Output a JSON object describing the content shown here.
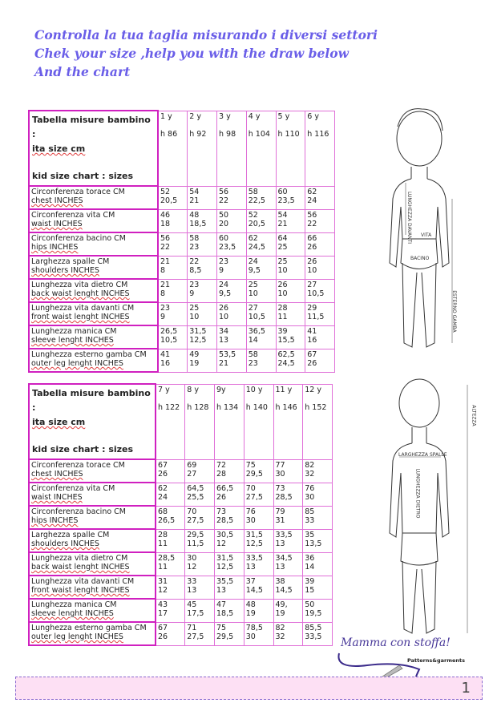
{
  "intro": [
    "Controlla la tua taglia misurando i diversi settori",
    "Chek your size ,help you with the draw below",
    "And the chart"
  ],
  "tables": [
    {
      "title_line1": "Tabella misure bambino :",
      "title_line2": "ita size  cm",
      "title_line3": "kid size chart : sizes",
      "sizes": [
        {
          "age": "1 y",
          "height": "h 86"
        },
        {
          "age": "2 y",
          "height": "h 92"
        },
        {
          "age": "3 y",
          "height": "h 98"
        },
        {
          "age": "4 y",
          "height": "h 104"
        },
        {
          "age": "5 y",
          "height": "h 110"
        },
        {
          "age": "6 y",
          "height": "h 116"
        }
      ],
      "rows": [
        {
          "it": "Circonferenza torace CM",
          "en": "chest INCHES",
          "cm": [
            "52",
            "54",
            "56",
            "58",
            "60",
            "62"
          ],
          "in": [
            "20,5",
            "21",
            "22",
            "22,5",
            "23,5",
            "24"
          ]
        },
        {
          "it": "Circonferenza vita CM",
          "en": "waist INCHES",
          "cm": [
            "46",
            "48",
            "50",
            "52",
            "54",
            "56"
          ],
          "in": [
            "18",
            "18,5",
            "20",
            "20,5",
            "21",
            "22"
          ]
        },
        {
          "it": "Circonferenza bacino CM",
          "en": "hips INCHES",
          "cm": [
            "56",
            "58",
            "60",
            "62",
            "64",
            "66"
          ],
          "in": [
            "22",
            "23",
            "23,5",
            "24,5",
            "25",
            "26"
          ]
        },
        {
          "it": "Larghezza spalle CM",
          "en": "shoulders INCHES",
          "cm": [
            "21",
            "22",
            "23",
            "24",
            "25",
            "26"
          ],
          "in": [
            "8",
            "8,5",
            "9",
            "9,5",
            "10",
            "10"
          ]
        },
        {
          "it": "Lunghezza vita dietro CM",
          "en": "back waist lenght INCHES",
          "cm": [
            "21",
            "23",
            "24",
            "25",
            "26",
            "27"
          ],
          "in": [
            "8",
            "9",
            "9,5",
            "10",
            "10",
            "10,5"
          ]
        },
        {
          "it": "Lunghezza vita davanti CM",
          "en": "front waist lenght INCHES",
          "cm": [
            "23",
            "25",
            "26",
            "27",
            "28",
            "29"
          ],
          "in": [
            "9",
            "10",
            "10",
            "10,5",
            "11",
            "11,5"
          ]
        },
        {
          "it": "Lunghezza manica CM",
          "en": "sleeve lenght INCHES",
          "cm": [
            "26,5",
            "31,5",
            "34",
            "36,5",
            "39",
            "41"
          ],
          "in": [
            "10,5",
            "12,5",
            "13",
            "14",
            "15,5",
            "16"
          ]
        },
        {
          "it": "Lunghezza esterno gamba CM",
          "en": "outer leg lenght INCHES",
          "cm": [
            "41",
            "49",
            "53,5",
            "58",
            "62,5",
            "67"
          ],
          "in": [
            "16",
            "19",
            "21",
            "23",
            "24,5",
            "26"
          ]
        }
      ]
    },
    {
      "title_line1": "Tabella misure bambino :",
      "title_line2": "ita size  cm",
      "title_line3": "kid size chart : sizes",
      "sizes": [
        {
          "age": "7 y",
          "height": "h 122"
        },
        {
          "age": "8 y",
          "height": "h 128"
        },
        {
          "age": "9y",
          "height": "h 134"
        },
        {
          "age": "10 y",
          "height": "h 140"
        },
        {
          "age": "11 y",
          "height": "h 146"
        },
        {
          "age": "12 y",
          "height": "h 152"
        }
      ],
      "rows": [
        {
          "it": "Circonferenza torace CM",
          "en": "chest INCHES",
          "cm": [
            "67",
            "69",
            "72",
            "75",
            "77",
            "82"
          ],
          "in": [
            "26",
            "27",
            "28",
            "29,5",
            "30",
            "32"
          ]
        },
        {
          "it": "Circonferenza vita CM",
          "en": "waist INCHES",
          "cm": [
            "62",
            "64,5",
            "66,5",
            "70",
            "73",
            "76"
          ],
          "in": [
            "24",
            "25,5",
            "26",
            "27,5",
            "28,5",
            "30"
          ]
        },
        {
          "it": "Circonferenza bacino CM",
          "en": "hips INCHES",
          "cm": [
            "68",
            "70",
            "73",
            "76",
            "79",
            "85"
          ],
          "in": [
            "26,5",
            "27,5",
            "28,5",
            "30",
            "31",
            "33"
          ]
        },
        {
          "it": "Larghezza spalle CM",
          "en": "shoulders INCHES",
          "cm": [
            "28",
            "29,5",
            "30,5",
            "31,5",
            "33,5",
            "35"
          ],
          "in": [
            "11",
            "11,5",
            "12",
            "12,5",
            "13",
            "13,5"
          ]
        },
        {
          "it": "Lunghezza vita dietro CM",
          "en": "back waist lenght INCHES",
          "cm": [
            "28,5",
            "30",
            "31,5",
            "33,5",
            "34,5",
            "36"
          ],
          "in": [
            "11",
            "12",
            "12,5",
            "13",
            "13",
            "14"
          ]
        },
        {
          "it": "Lunghezza vita davanti CM",
          "en": "front waist lenght INCHES",
          "cm": [
            "31",
            "33",
            "35,5",
            "37",
            "38",
            "39"
          ],
          "in": [
            "12",
            "13",
            "13",
            "14,5",
            "14,5",
            "15"
          ]
        },
        {
          "it": "Lunghezza manica CM",
          "en": "sleeve lenght INCHES",
          "cm": [
            "43",
            "45",
            "47",
            "48",
            "49,",
            "50"
          ],
          "in": [
            "17",
            "17,5",
            "18,5",
            "19",
            "19",
            "19,5"
          ]
        },
        {
          "it": "Lunghezza esterno gamba CM",
          "en": "outer leg lenght INCHES",
          "cm": [
            "67",
            "71",
            "75",
            "78,5",
            "82",
            "85,5"
          ],
          "in": [
            "26",
            "27,5",
            "29,5",
            "30",
            "32",
            "33,5"
          ]
        }
      ]
    }
  ],
  "figures": {
    "front": {
      "front_length": "LUNGHEZZA DAVANTI",
      "waist": "VITA",
      "hips": "BACINO",
      "outer_leg": "ESTERNO GAMBA"
    },
    "back": {
      "height": "ALTEZZA",
      "shoulders": "LARGHEZZA SPALLE",
      "back_length": "LUNGHEZZA DIETRO"
    }
  },
  "logo": {
    "name": "Mamma con stoffa!",
    "tagline": "Patterns&garments"
  },
  "footer": {
    "page_number": "1"
  },
  "colors": {
    "intro_text": "#6a5ee8",
    "table_border": "#d020c0",
    "footer_bg": "#fde0f4"
  }
}
